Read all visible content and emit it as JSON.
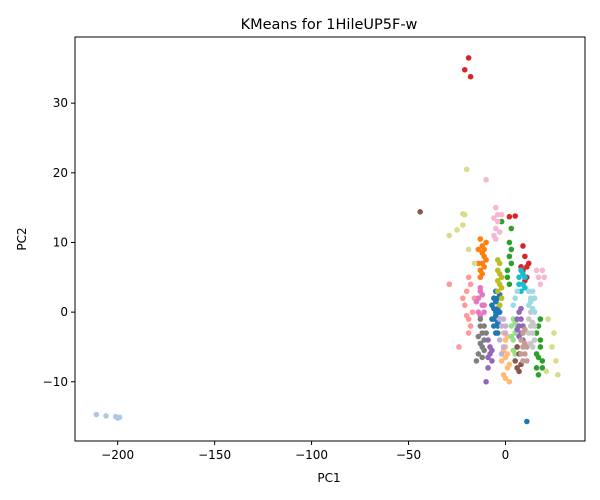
{
  "chart_data": {
    "type": "scatter",
    "title": "KMeans for 1HileUP5F-w",
    "xlabel": "PC1",
    "ylabel": "PC2",
    "xlim": [
      -222,
      41
    ],
    "ylim": [
      -18.5,
      39.5
    ],
    "xticks": [
      -200,
      -150,
      -100,
      -50,
      0
    ],
    "xtick_labels": [
      "−200",
      "−150",
      "−100",
      "−50",
      "0"
    ],
    "yticks": [
      -10,
      0,
      10,
      20,
      30
    ],
    "ytick_labels": [
      "−10",
      "0",
      "10",
      "20",
      "30"
    ],
    "grid": false,
    "legend": false,
    "series": [
      {
        "color": "#1f77b4",
        "points": [
          [
            -5,
            0
          ],
          [
            -4,
            2
          ],
          [
            -6,
            -1
          ],
          [
            -3,
            1
          ],
          [
            -5,
            3
          ],
          [
            -4,
            -2
          ],
          [
            -7,
            1
          ],
          [
            -3,
            -1
          ],
          [
            -5,
            -3
          ],
          [
            -6,
            2
          ],
          [
            -4,
            0.5
          ],
          [
            -5,
            -0.5
          ],
          [
            -3,
            2.5
          ],
          [
            -6,
            -2
          ],
          [
            -4,
            -3
          ],
          [
            -5,
            1.5
          ],
          [
            -7,
            -1
          ],
          [
            -3,
            0
          ],
          [
            -4,
            -1.5
          ],
          [
            -6,
            0.5
          ],
          [
            11,
            -15.7
          ]
        ]
      },
      {
        "color": "#aec7e8",
        "points": [
          [
            -211,
            -14.7
          ],
          [
            -206,
            -14.9
          ],
          [
            -201,
            -15
          ],
          [
            -199,
            -15.1
          ],
          [
            -200,
            -15.2
          ]
        ]
      },
      {
        "color": "#ff7f0e",
        "points": [
          [
            -13,
            6
          ],
          [
            -12,
            7
          ],
          [
            -11,
            8
          ],
          [
            -14,
            9
          ],
          [
            -12,
            9.5
          ],
          [
            -10,
            10
          ],
          [
            -13,
            5
          ],
          [
            -11,
            6.5
          ],
          [
            -12,
            8.5
          ],
          [
            -14,
            7
          ],
          [
            -10,
            7.5
          ],
          [
            -13,
            10.5
          ],
          [
            -12,
            5.5
          ],
          [
            -11,
            9
          ]
        ]
      },
      {
        "color": "#ffbb78",
        "points": [
          [
            -1,
            -3
          ],
          [
            0,
            -5
          ],
          [
            1,
            -6
          ],
          [
            -2,
            -7
          ],
          [
            0,
            -4
          ],
          [
            1,
            -8
          ],
          [
            -1,
            -9
          ],
          [
            2,
            -10
          ],
          [
            0,
            -6.5
          ],
          [
            -1,
            -5.5
          ],
          [
            1,
            -3.5
          ],
          [
            2,
            -7.5
          ],
          [
            0,
            -9.5
          ]
        ]
      },
      {
        "color": "#2ca02c",
        "points": [
          [
            17,
            -2
          ],
          [
            18,
            -4
          ],
          [
            16,
            -6
          ],
          [
            19,
            -8
          ],
          [
            17,
            -9
          ],
          [
            18,
            -5
          ],
          [
            16,
            -3
          ],
          [
            19,
            -7
          ],
          [
            18,
            -1
          ],
          [
            17,
            -6.5
          ],
          [
            16,
            -8
          ],
          [
            2,
            8
          ],
          [
            1,
            6
          ],
          [
            3,
            7
          ],
          [
            2,
            4
          ],
          [
            1,
            5
          ],
          [
            3,
            9
          ],
          [
            2,
            10
          ],
          [
            -2,
            13
          ],
          [
            3,
            12
          ]
        ]
      },
      {
        "color": "#98df8a",
        "points": [
          [
            3,
            -2
          ],
          [
            4,
            -4
          ],
          [
            5,
            -3
          ],
          [
            6,
            -5
          ],
          [
            4,
            -1
          ],
          [
            5,
            -6
          ],
          [
            3,
            -3.5
          ],
          [
            6,
            -2
          ],
          [
            4,
            -5.5
          ],
          [
            5,
            -1.5
          ]
        ]
      },
      {
        "color": "#d62728",
        "points": [
          [
            -19,
            36.5
          ],
          [
            -21,
            34.8
          ],
          [
            -18,
            33.8
          ],
          [
            2,
            13.7
          ],
          [
            5,
            13.8
          ],
          [
            9,
            6
          ],
          [
            10,
            8
          ],
          [
            11,
            5
          ],
          [
            12,
            7
          ],
          [
            9,
            9.5
          ],
          [
            8,
            6.5
          ],
          [
            10,
            4.5
          ],
          [
            11,
            6.5
          ]
        ]
      },
      {
        "color": "#ff9896",
        "points": [
          [
            -17,
            0
          ],
          [
            -19,
            -1
          ],
          [
            -20,
            3
          ],
          [
            -18,
            4
          ],
          [
            -21,
            1
          ],
          [
            -19,
            -3
          ],
          [
            -22,
            2
          ],
          [
            -18,
            -2
          ],
          [
            -20,
            -0.5
          ],
          [
            -16,
            2
          ],
          [
            -19,
            5
          ],
          [
            -24,
            -5
          ],
          [
            -29,
            4
          ]
        ]
      },
      {
        "color": "#9467bd",
        "points": [
          [
            6,
            -1
          ],
          [
            7,
            -2
          ],
          [
            8,
            -3
          ],
          [
            9,
            -4
          ],
          [
            7,
            0
          ],
          [
            8,
            -1
          ],
          [
            9,
            -2
          ],
          [
            7,
            -3.5
          ],
          [
            8,
            0.5
          ],
          [
            6,
            -2.5
          ],
          [
            -9,
            -4
          ],
          [
            -8,
            -6
          ],
          [
            -7,
            -7
          ],
          [
            -9,
            -8
          ],
          [
            -10,
            -10
          ],
          [
            -8,
            -5
          ],
          [
            -9,
            -6.5
          ],
          [
            -7,
            -5.5
          ]
        ]
      },
      {
        "color": "#c5b0d5",
        "points": [
          [
            -2,
            -2
          ],
          [
            -1,
            -1
          ],
          [
            0,
            -3
          ],
          [
            -3,
            -4
          ],
          [
            -1,
            -5
          ],
          [
            -2,
            -6
          ],
          [
            0,
            -2
          ],
          [
            -3,
            -1
          ]
        ]
      },
      {
        "color": "#8c564b",
        "points": [
          [
            -44,
            14.4
          ],
          [
            5,
            -7
          ],
          [
            6,
            -8
          ],
          [
            7,
            -6
          ],
          [
            8,
            -7.5
          ],
          [
            6,
            -5
          ],
          [
            7,
            -8.5
          ]
        ]
      },
      {
        "color": "#c49c94",
        "points": [
          [
            8,
            -4
          ],
          [
            9,
            -5
          ],
          [
            10,
            -6
          ],
          [
            11,
            -7
          ],
          [
            9,
            -3
          ],
          [
            10,
            -4.5
          ],
          [
            8,
            -6
          ],
          [
            11,
            -5
          ],
          [
            9,
            -7
          ],
          [
            10,
            -2.5
          ]
        ]
      },
      {
        "color": "#e377c2",
        "points": [
          [
            -14,
            2
          ],
          [
            -13,
            3
          ],
          [
            -12,
            1
          ],
          [
            -11,
            0
          ],
          [
            -15,
            1.5
          ],
          [
            -13,
            -0.5
          ],
          [
            -12,
            2.5
          ],
          [
            -14,
            0
          ],
          [
            -11,
            1
          ],
          [
            -13,
            3.5
          ]
        ]
      },
      {
        "color": "#f7b6d2",
        "points": [
          [
            -6,
            11
          ],
          [
            -5,
            12
          ],
          [
            -4,
            13
          ],
          [
            -5,
            15
          ],
          [
            -4,
            14
          ],
          [
            -6,
            13.5
          ],
          [
            -3,
            11.5
          ],
          [
            -5,
            10.5
          ],
          [
            16,
            6
          ],
          [
            17,
            5
          ],
          [
            18,
            4
          ],
          [
            19,
            6
          ],
          [
            20,
            5
          ],
          [
            -10,
            19
          ],
          [
            -2,
            14
          ]
        ]
      },
      {
        "color": "#7f7f7f",
        "points": [
          [
            -13,
            -2
          ],
          [
            -12,
            -3
          ],
          [
            -11,
            -4
          ],
          [
            -14,
            -3.5
          ],
          [
            -12,
            -5
          ],
          [
            -13,
            -1
          ],
          [
            -11,
            -2
          ],
          [
            -10,
            -3
          ],
          [
            -14,
            -6
          ],
          [
            -12,
            -6.5
          ],
          [
            -11,
            -5.5
          ],
          [
            -13,
            -4.5
          ],
          [
            -15,
            -7
          ]
        ]
      },
      {
        "color": "#c7c7c7",
        "points": [
          [
            12,
            -1
          ],
          [
            13,
            -2
          ],
          [
            14,
            -3
          ],
          [
            15,
            -4
          ],
          [
            13,
            0
          ],
          [
            14,
            -1.5
          ],
          [
            12,
            -3
          ],
          [
            15,
            -2
          ],
          [
            13,
            -4.5
          ],
          [
            14,
            -5
          ]
        ]
      },
      {
        "color": "#bcbd22",
        "points": [
          [
            -4,
            3
          ],
          [
            -3,
            4
          ],
          [
            -2,
            5
          ],
          [
            -4,
            6
          ],
          [
            -3,
            7
          ],
          [
            -2,
            2
          ],
          [
            -4,
            4.5
          ],
          [
            -3,
            5.5
          ],
          [
            -2,
            3.5
          ],
          [
            -4,
            7.5
          ],
          [
            -3,
            1
          ]
        ]
      },
      {
        "color": "#dbdb8d",
        "points": [
          [
            -20,
            20.5
          ],
          [
            -21,
            14
          ],
          [
            -22,
            14.1
          ],
          [
            -29,
            11
          ],
          [
            -25,
            11.8
          ],
          [
            -22,
            12.5
          ],
          [
            -19,
            9
          ],
          [
            -16,
            7
          ],
          [
            25,
            -3
          ],
          [
            26,
            -7
          ],
          [
            27,
            -9
          ],
          [
            22,
            -1
          ],
          [
            24,
            -5
          ],
          [
            21,
            -8.5
          ]
        ]
      },
      {
        "color": "#17becf",
        "points": [
          [
            7,
            5
          ],
          [
            8,
            6
          ],
          [
            9,
            4
          ],
          [
            10,
            5
          ],
          [
            8,
            3
          ],
          [
            9,
            5.5
          ],
          [
            7,
            4
          ],
          [
            10,
            3.5
          ]
        ]
      },
      {
        "color": "#9edae5",
        "points": [
          [
            12,
            1
          ],
          [
            13,
            2
          ],
          [
            14,
            3
          ],
          [
            15,
            0
          ],
          [
            13,
            1.5
          ],
          [
            12,
            3
          ],
          [
            14,
            0.5
          ],
          [
            15,
            2
          ],
          [
            5,
            2
          ],
          [
            6,
            3
          ],
          [
            4,
            1
          ]
        ]
      }
    ]
  }
}
